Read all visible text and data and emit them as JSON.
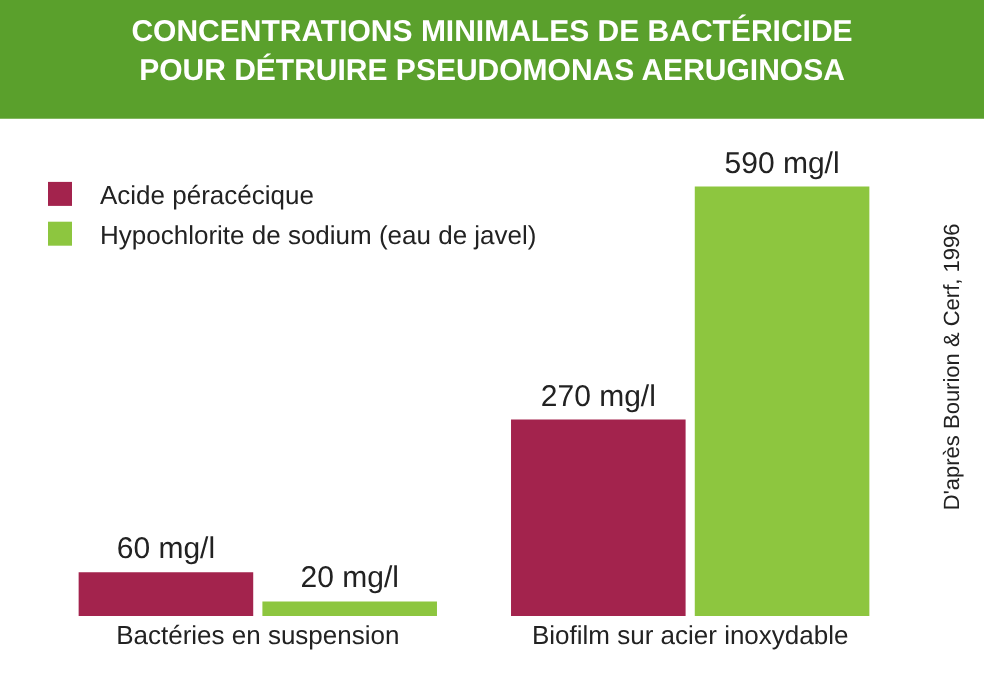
{
  "chart_data": {
    "type": "bar",
    "title": "CONCENTRATIONS MINIMALES DE BACTÉRICIDE\nPOUR DÉTRUIRE PSEUDOMONAS AERUGINOSA",
    "categories": [
      "Bactéries en suspension",
      "Biofilm sur acier inoxydable"
    ],
    "series": [
      {
        "name": "Acide péracécique",
        "color": "#a3234d",
        "values": [
          60,
          270
        ],
        "value_labels": [
          "60 mg/l",
          "270 mg/l"
        ]
      },
      {
        "name": "Hypochlorite de sodium (eau de javel)",
        "color": "#8dc63f",
        "values": [
          20,
          590
        ],
        "value_labels": [
          "20 mg/l",
          "590 mg/l"
        ]
      }
    ],
    "annotations": [
      "D'après Bourion & Cerf, 1996"
    ],
    "legend": "top left"
  }
}
